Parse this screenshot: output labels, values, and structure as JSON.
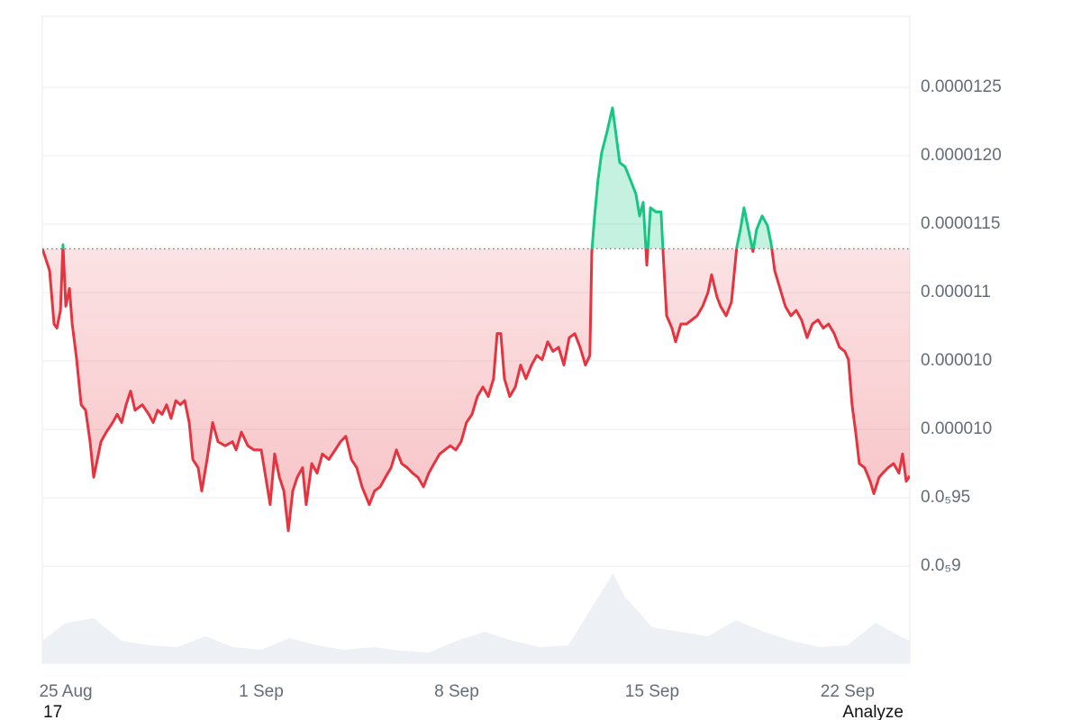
{
  "chart_data": {
    "type": "line",
    "x": [
      -0.84,
      -0.74,
      -0.58,
      -0.42,
      -0.32,
      -0.19,
      -0.1,
      0,
      0.13,
      0.23,
      0.39,
      0.55,
      0.71,
      0.87,
      1.0,
      1.13,
      1.26,
      1.45,
      1.68,
      1.84,
      2.0,
      2.16,
      2.32,
      2.48,
      2.74,
      2.97,
      3.13,
      3.29,
      3.45,
      3.61,
      3.77,
      3.94,
      4.1,
      4.26,
      4.42,
      4.55,
      4.74,
      4.87,
      5.06,
      5.26,
      5.45,
      5.71,
      5.97,
      6.1,
      6.29,
      6.52,
      6.74,
      7.0,
      7.16,
      7.32,
      7.48,
      7.65,
      7.81,
      7.97,
      8.13,
      8.29,
      8.48,
      8.61,
      8.81,
      9.0,
      9.19,
      9.42,
      9.65,
      9.84,
      10.03,
      10.23,
      10.42,
      10.61,
      10.87,
      11.06,
      11.26,
      11.45,
      11.65,
      11.84,
      12.03,
      12.23,
      12.42,
      12.61,
      12.81,
      13.0,
      13.19,
      13.39,
      13.58,
      13.77,
      13.97,
      14.16,
      14.35,
      14.55,
      14.74,
      14.94,
      15.13,
      15.32,
      15.45,
      15.58,
      15.71,
      15.9,
      16.1,
      16.29,
      16.48,
      16.68,
      16.87,
      17.06,
      17.26,
      17.45,
      17.65,
      17.84,
      18.03,
      18.23,
      18.42,
      18.61,
      18.77,
      18.84,
      18.94,
      19.06,
      19.19,
      19.39,
      19.58,
      19.71,
      19.84,
      20.03,
      20.23,
      20.42,
      20.55,
      20.68,
      20.81,
      20.94,
      21.13,
      21.32,
      21.39,
      21.52,
      21.71,
      21.84,
      22.03,
      22.23,
      22.42,
      22.61,
      22.81,
      23.0,
      23.13,
      23.32,
      23.45,
      23.65,
      23.84,
      24.03,
      24.16,
      24.29,
      24.42,
      24.61,
      24.74,
      24.94,
      25.13,
      25.26,
      25.39,
      25.58,
      25.77,
      25.97,
      26.16,
      26.35,
      26.55,
      26.74,
      26.94,
      27.13,
      27.32,
      27.52,
      27.71,
      27.9,
      28.03,
      28.16,
      28.29,
      28.42,
      28.61,
      28.81,
      28.94,
      29.13,
      29.26,
      29.45,
      29.65,
      29.84,
      29.97,
      30.1,
      30.23
    ],
    "series": [
      {
        "color": "#e5343f",
        "values": [
          1.132e-05,
          1.126e-05,
          1.116e-05,
          1.077e-05,
          1.074e-05,
          1.087e-05,
          1.135e-05,
          1.09e-05,
          1.103e-05,
          1.077e-05,
          1.051e-05,
          1.018e-05,
          1.014e-05,
          9.91e-06,
          9.65e-06,
          9.78e-06,
          9.91e-06,
          9.98e-06,
          1.005e-05,
          1.011e-05,
          1.005e-05,
          1.018e-05,
          1.028e-05,
          1.014e-05,
          1.018e-05,
          1.011e-05,
          1.005e-05,
          1.014e-05,
          1.011e-05,
          1.018e-05,
          1.008e-05,
          1.021e-05,
          1.018e-05,
          1.021e-05,
          1.005e-05,
          9.78e-06,
          9.72e-06,
          9.55e-06,
          9.78e-06,
          1.005e-05,
          9.91e-06,
          9.88e-06,
          9.91e-06,
          9.85e-06,
          9.98e-06,
          9.88e-06,
          9.85e-06,
          9.85e-06,
          9.65e-06,
          9.45e-06,
          9.82e-06,
          9.65e-06,
          9.55e-06,
          9.26e-06,
          9.55e-06,
          9.65e-06,
          9.72e-06,
          9.45e-06,
          9.75e-06,
          9.68e-06,
          9.82e-06,
          9.78e-06,
          9.85e-06,
          9.91e-06,
          9.95e-06,
          9.78e-06,
          9.72e-06,
          9.58e-06,
          9.45e-06,
          9.55e-06,
          9.58e-06,
          9.65e-06,
          9.72e-06,
          9.85e-06,
          9.75e-06,
          9.72e-06,
          9.68e-06,
          9.65e-06,
          9.58e-06,
          9.68e-06,
          9.75e-06,
          9.82e-06,
          9.85e-06,
          9.88e-06,
          9.85e-06,
          9.91e-06,
          1.005e-05,
          1.011e-05,
          1.024e-05,
          1.031e-05,
          1.024e-05,
          1.037e-05,
          1.07e-05,
          1.07e-05,
          1.037e-05,
          1.024e-05,
          1.031e-05,
          1.047e-05,
          1.037e-05,
          1.047e-05,
          1.054e-05,
          1.051e-05,
          1.064e-05,
          1.057e-05,
          1.06e-05,
          1.047e-05,
          1.067e-05,
          1.07e-05,
          1.06e-05,
          1.047e-05,
          1.054e-05,
          1.13e-05,
          1.156e-05,
          1.182e-05,
          1.202e-05,
          1.218e-05,
          1.235e-05,
          1.215e-05,
          1.195e-05,
          1.192e-05,
          1.182e-05,
          1.172e-05,
          1.156e-05,
          1.166e-05,
          1.12e-05,
          1.162e-05,
          1.159e-05,
          1.159e-05,
          1.13e-05,
          1.083e-05,
          1.074e-05,
          1.064e-05,
          1.077e-05,
          1.077e-05,
          1.08e-05,
          1.083e-05,
          1.09e-05,
          1.1e-05,
          1.113e-05,
          1.097e-05,
          1.09e-05,
          1.083e-05,
          1.093e-05,
          1.133e-05,
          1.146e-05,
          1.162e-05,
          1.149e-05,
          1.13e-05,
          1.146e-05,
          1.156e-05,
          1.149e-05,
          1.136e-05,
          1.116e-05,
          1.103e-05,
          1.09e-05,
          1.083e-05,
          1.087e-05,
          1.08e-05,
          1.067e-05,
          1.077e-05,
          1.08e-05,
          1.074e-05,
          1.077e-05,
          1.07e-05,
          1.06e-05,
          1.057e-05,
          1.051e-05,
          1.018e-05,
          9.98e-06,
          9.75e-06,
          9.72e-06,
          9.62e-06,
          9.53e-06,
          9.65e-06,
          9.68e-06,
          9.72e-06,
          9.75e-06,
          9.68e-06,
          9.82e-06,
          9.62e-06,
          9.66e-06
        ]
      }
    ],
    "baseline": 1.132e-05,
    "color_above": "#16c784",
    "xlim": [
      -0.84,
      30.23
    ],
    "xticks": [
      {
        "value": 0,
        "label": "25 Aug"
      },
      {
        "value": 7,
        "label": "1 Sep"
      },
      {
        "value": 14,
        "label": "8 Sep"
      },
      {
        "value": 21,
        "label": "15 Sep"
      },
      {
        "value": 28,
        "label": "22 Sep"
      }
    ],
    "ylim": [
      8.29e-06,
      1.302e-05
    ],
    "yticks": [
      {
        "value": 1.25e-05,
        "label": "0.0000125"
      },
      {
        "value": 1.2e-05,
        "label": "0.0000120"
      },
      {
        "value": 1.15e-05,
        "label": "0.0000115"
      },
      {
        "value": 1.1e-05,
        "label": "0.000011"
      },
      {
        "value": 1.05e-05,
        "label": "0.000010"
      },
      {
        "value": 1e-05,
        "label": "0.000010"
      },
      {
        "value": 9.5e-06,
        "label": "0.0₅95"
      },
      {
        "value": 9e-06,
        "label": "0.0₅9"
      }
    ],
    "grid": true,
    "volume": {
      "color": "#edf0f4",
      "x": [
        -0.84,
        0,
        1,
        2,
        3,
        4,
        5,
        6,
        7,
        8,
        9,
        10,
        11,
        12,
        13,
        14,
        15,
        16,
        17,
        18,
        19,
        19.6,
        20,
        21,
        22,
        23,
        24,
        25,
        26,
        27,
        28,
        29,
        30,
        30.23
      ],
      "values": [
        25,
        45,
        50,
        25,
        20,
        18,
        30,
        18,
        15,
        28,
        20,
        15,
        18,
        14,
        12,
        25,
        35,
        25,
        18,
        20,
        70,
        100,
        75,
        40,
        35,
        30,
        48,
        35,
        25,
        18,
        20,
        45,
        28,
        25
      ]
    },
    "y2lim": [
      0,
      100
    ]
  },
  "footer": {
    "left": "17",
    "right": "Analyze"
  }
}
